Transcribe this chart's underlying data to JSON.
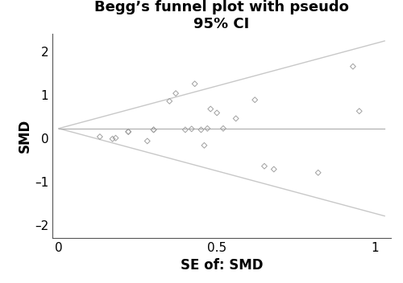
{
  "title": "Begg’s funnel plot with pseudo\n95% CI",
  "xlabel": "SE of: SMD",
  "ylabel": "SMD",
  "xlim": [
    -0.02,
    1.05
  ],
  "ylim": [
    -2.3,
    2.4
  ],
  "xticks": [
    0,
    0.5,
    1
  ],
  "yticks": [
    -2,
    -1,
    0,
    1,
    2
  ],
  "mean_smd": 0.22,
  "se_max": 1.03,
  "ci_multiplier": 1.96,
  "funnel_color": "#c8c8c8",
  "mean_line_color": "#b0b0b0",
  "scatter_color": "#a0a0a0",
  "scatter_marker": "D",
  "scatter_size": 12,
  "scatter_linewidth": 0.7,
  "points": [
    [
      0.13,
      0.03
    ],
    [
      0.17,
      -0.02
    ],
    [
      0.18,
      0.0
    ],
    [
      0.22,
      0.15
    ],
    [
      0.22,
      0.14
    ],
    [
      0.28,
      -0.07
    ],
    [
      0.3,
      0.19
    ],
    [
      0.3,
      0.19
    ],
    [
      0.35,
      0.85
    ],
    [
      0.37,
      1.03
    ],
    [
      0.4,
      0.19
    ],
    [
      0.42,
      0.21
    ],
    [
      0.43,
      1.25
    ],
    [
      0.45,
      0.19
    ],
    [
      0.46,
      -0.17
    ],
    [
      0.47,
      0.22
    ],
    [
      0.48,
      0.67
    ],
    [
      0.5,
      0.58
    ],
    [
      0.52,
      0.22
    ],
    [
      0.56,
      0.45
    ],
    [
      0.62,
      0.88
    ],
    [
      0.65,
      -0.65
    ],
    [
      0.68,
      -0.72
    ],
    [
      0.82,
      -0.8
    ],
    [
      0.93,
      1.65
    ],
    [
      0.95,
      0.62
    ]
  ],
  "background_color": "#ffffff",
  "title_fontsize": 13,
  "axis_label_fontsize": 12,
  "tick_fontsize": 11
}
